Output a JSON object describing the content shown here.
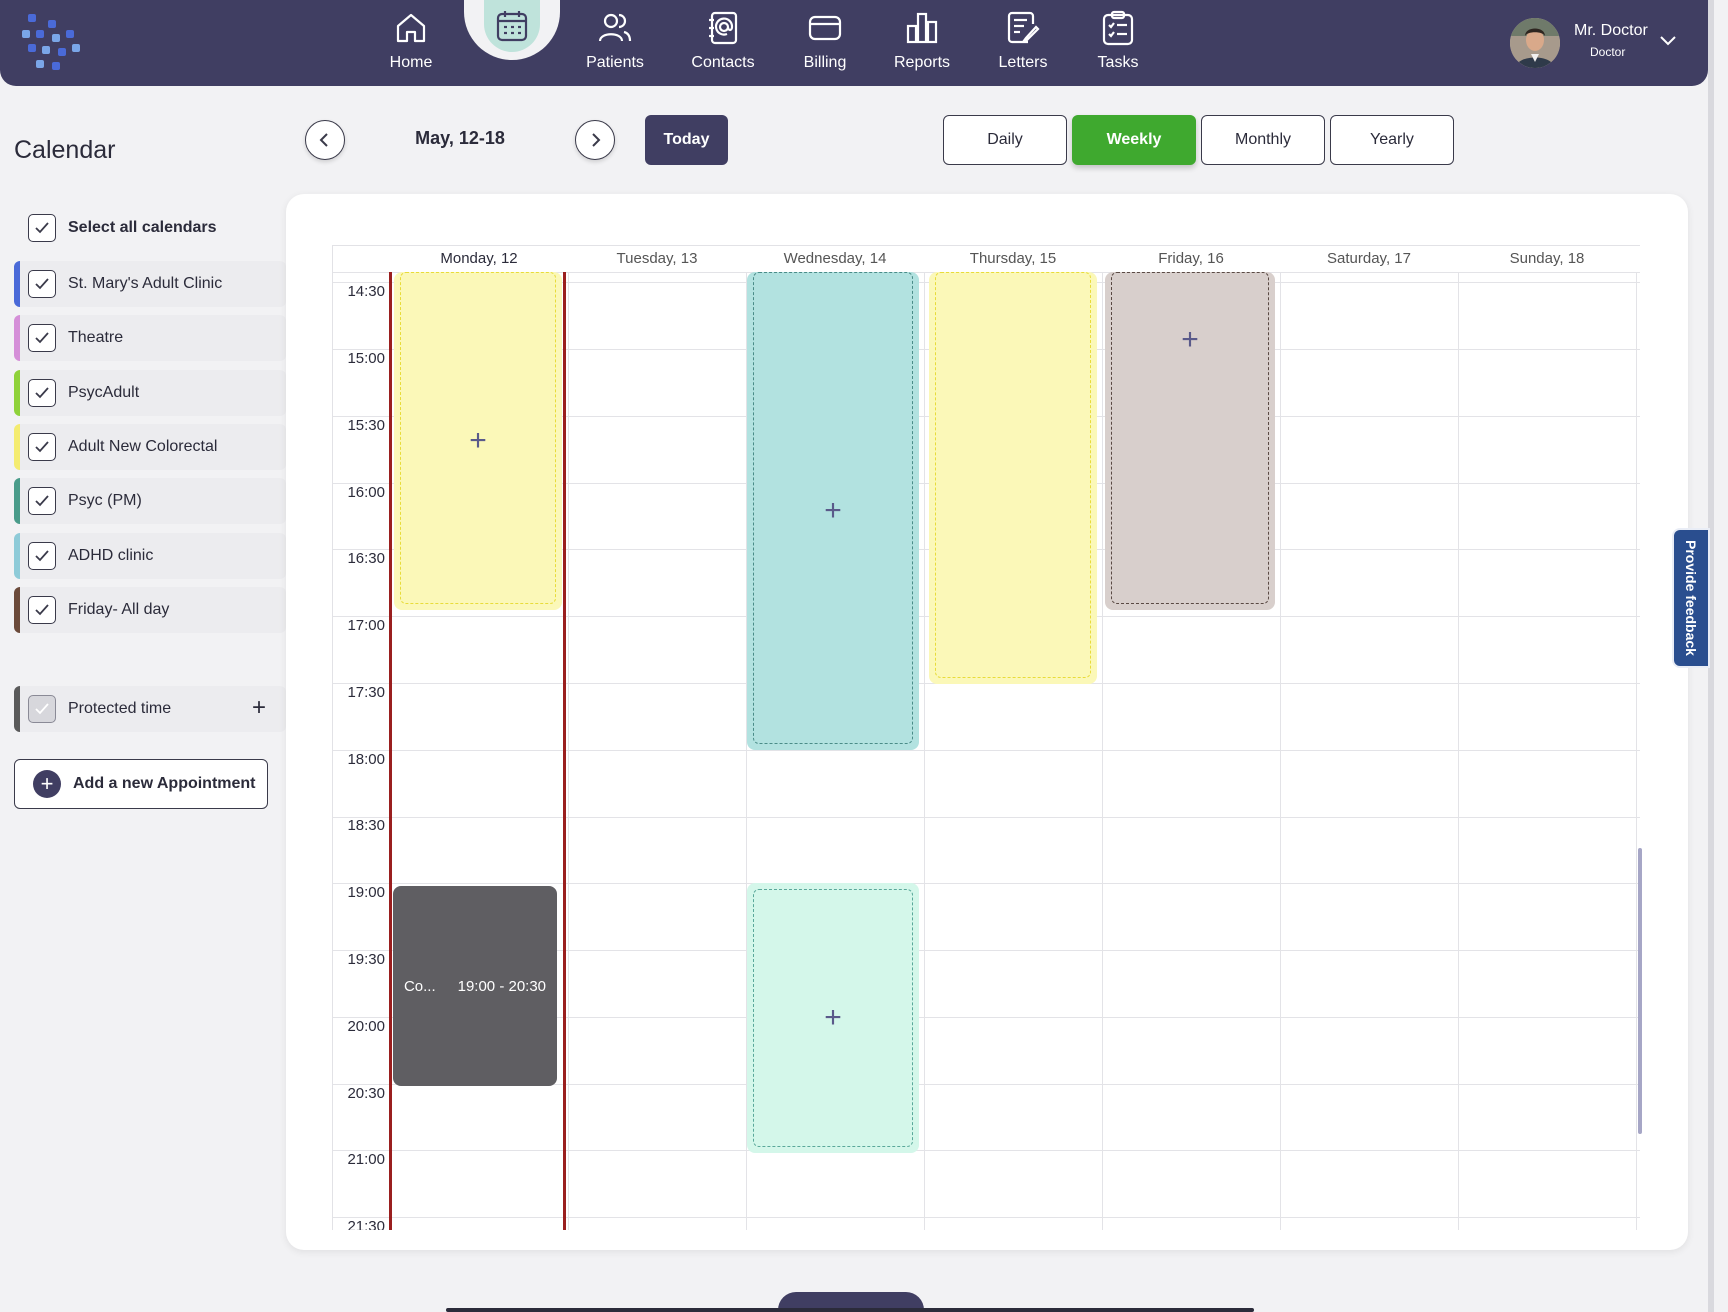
{
  "nav": {
    "items": [
      {
        "label": "Home",
        "icon": "home-icon"
      },
      {
        "label": "Patients",
        "icon": "patients-icon"
      },
      {
        "label": "Contacts",
        "icon": "contacts-icon"
      },
      {
        "label": "Billing",
        "icon": "billing-icon"
      },
      {
        "label": "Reports",
        "icon": "reports-icon"
      },
      {
        "label": "Letters",
        "icon": "letters-icon"
      },
      {
        "label": "Tasks",
        "icon": "tasks-icon"
      }
    ],
    "active_icon": "calendar-icon"
  },
  "user": {
    "name": "Mr. Doctor",
    "role": "Doctor"
  },
  "sidebar": {
    "title": "Calendar",
    "select_all": "Select all calendars",
    "calendars": [
      {
        "label": "St. Mary's Adult Clinic",
        "color": "#4a6ad8"
      },
      {
        "label": "Theatre",
        "color": "#d58fd8"
      },
      {
        "label": "PsycAdult",
        "color": "#8fd23a"
      },
      {
        "label": "Adult New Colorectal",
        "color": "#f4ec70"
      },
      {
        "label": "Psyc (PM)",
        "color": "#4a9c8a"
      },
      {
        "label": "ADHD clinic",
        "color": "#8ecbd8"
      },
      {
        "label": "Friday- All day",
        "color": "#6b4a3a"
      }
    ],
    "protected": {
      "label": "Protected time",
      "color": "#5a5a5a"
    },
    "add_button": "Add a new Appointment"
  },
  "toolbar": {
    "range": "May, 12-18",
    "today": "Today",
    "views": [
      "Daily",
      "Weekly",
      "Monthly",
      "Yearly"
    ],
    "active_view": "Weekly"
  },
  "week": {
    "days": [
      "Monday, 12",
      "Tuesday, 13",
      "Wednesday, 14",
      "Thursday, 15",
      "Friday, 16",
      "Saturday, 17",
      "Sunday, 18"
    ],
    "times": [
      "14:30",
      "15:00",
      "15:30",
      "16:00",
      "16:30",
      "17:00",
      "17:30",
      "18:00",
      "18:30",
      "19:00",
      "19:30",
      "20:00",
      "20:30",
      "21:00",
      "21:30"
    ]
  },
  "appointments": [
    {
      "title": "Co...",
      "time": "19:00 - 20:30",
      "color": "#5f5e62"
    }
  ],
  "colors": {
    "primary": "#403e62",
    "accent_green": "#3fa92f",
    "today_marker": "#9a1f1f",
    "slot_yellow": "#fbf8b8",
    "slot_teal": "#b2e2e0",
    "slot_mint": "#d4f7ea",
    "slot_taupe": "#d8cfcc"
  },
  "feedback": "Provide feedback"
}
